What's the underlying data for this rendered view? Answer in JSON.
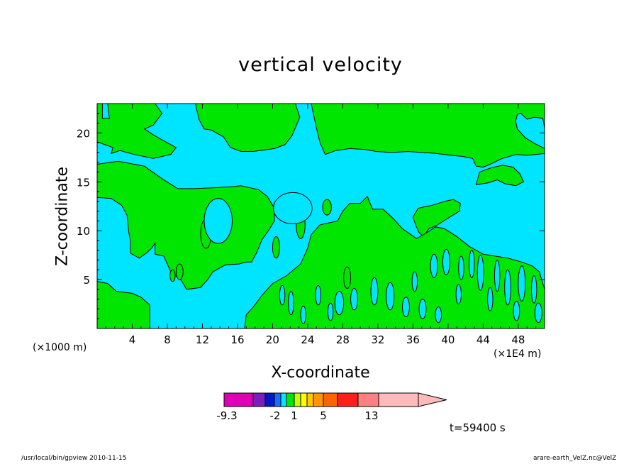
{
  "chart_data": {
    "type": "heatmap",
    "title": "vertical velocity",
    "xlabel": "X-coordinate",
    "ylabel": "Z-coordinate",
    "x_unit_label": "(×1000 m)",
    "x_scale_label": "(×1E4 m)",
    "xlim": [
      0,
      51
    ],
    "ylim": [
      0,
      23
    ],
    "xticks": [
      4,
      8,
      12,
      16,
      20,
      24,
      28,
      32,
      36,
      40,
      44,
      48
    ],
    "yticks": [
      5,
      10,
      15,
      20
    ],
    "colors": {
      "negative": "#00e5ff",
      "positive": "#00e600"
    },
    "colorbar": {
      "colors": [
        "#e000b4",
        "#7a1fbf",
        "#0018c8",
        "#1a6cff",
        "#00e5ff",
        "#00e600",
        "#c8ff00",
        "#ffff00",
        "#ffc800",
        "#ff9600",
        "#ff6400",
        "#ff1e1e",
        "#ff8080",
        "#ffbaba"
      ],
      "tick_labels": [
        "-9.3",
        "-2",
        "1",
        "5",
        "13"
      ]
    },
    "time_label": "t=59400 s",
    "positive_regions": [
      [
        [
          0,
          23
        ],
        [
          0.6,
          23
        ],
        [
          0.6,
          21.5
        ],
        [
          1.4,
          21.5
        ],
        [
          1.2,
          23
        ],
        [
          6.6,
          23
        ],
        [
          7.4,
          22
        ],
        [
          6.4,
          20.8
        ],
        [
          5.4,
          20.4
        ],
        [
          6.4,
          19.8
        ],
        [
          7.6,
          19.2
        ],
        [
          9,
          18.5
        ],
        [
          8.4,
          17.8
        ],
        [
          6.4,
          17.4
        ],
        [
          4.2,
          17.8
        ],
        [
          2.6,
          18.2
        ],
        [
          1.6,
          17.9
        ],
        [
          1.8,
          18.5
        ],
        [
          0,
          19.1
        ]
      ],
      [
        [
          11.2,
          23
        ],
        [
          22.6,
          23
        ],
        [
          23.1,
          21.6
        ],
        [
          22.2,
          19.7
        ],
        [
          21.4,
          18.8
        ],
        [
          20.2,
          18.4
        ],
        [
          17.8,
          18.1
        ],
        [
          16.4,
          18.1
        ],
        [
          15.2,
          18.5
        ],
        [
          14.4,
          19.6
        ],
        [
          13,
          20.3
        ],
        [
          12.2,
          20.4
        ],
        [
          11.6,
          21.4
        ]
      ],
      [
        [
          0,
          16.8
        ],
        [
          2.4,
          17.1
        ],
        [
          5.4,
          16.6
        ],
        [
          6,
          16.2
        ],
        [
          7.6,
          15.2
        ],
        [
          9.2,
          14.3
        ],
        [
          11,
          14.3
        ],
        [
          13.6,
          14.4
        ],
        [
          15.2,
          14.5
        ],
        [
          16.4,
          14.6
        ],
        [
          18.4,
          14.2
        ],
        [
          19.4,
          13.5
        ],
        [
          20.2,
          12.3
        ],
        [
          20.2,
          11
        ],
        [
          19.6,
          10.1
        ],
        [
          18.8,
          9.1
        ],
        [
          18.2,
          7.8
        ],
        [
          17.6,
          6.8
        ],
        [
          17,
          6.8
        ],
        [
          16.2,
          6.6
        ],
        [
          14.6,
          6.5
        ],
        [
          13.2,
          5.8
        ],
        [
          12.6,
          5
        ],
        [
          11.8,
          4.2
        ],
        [
          10.2,
          4
        ],
        [
          9.6,
          4.9
        ],
        [
          8.4,
          5.8
        ],
        [
          7.6,
          7.4
        ],
        [
          6.6,
          7.6
        ],
        [
          6.6,
          8.7
        ],
        [
          6.2,
          8.2
        ],
        [
          5.6,
          7.7
        ],
        [
          4.8,
          7.2
        ],
        [
          3.8,
          7.7
        ],
        [
          3.8,
          8.9
        ],
        [
          3.6,
          9.9
        ],
        [
          3.4,
          11.6
        ],
        [
          2.8,
          12.6
        ],
        [
          1.6,
          13.3
        ],
        [
          0,
          13.4
        ]
      ],
      [
        [
          24.4,
          23
        ],
        [
          51,
          23
        ],
        [
          51,
          20.5
        ],
        [
          50.8,
          21.5
        ],
        [
          49.8,
          21.6
        ],
        [
          49,
          21.4
        ],
        [
          48.3,
          22
        ],
        [
          47.9,
          21.9
        ],
        [
          47.7,
          21.2
        ],
        [
          47.9,
          20.4
        ],
        [
          48.8,
          19.5
        ],
        [
          49.9,
          18.9
        ],
        [
          51,
          18.4
        ],
        [
          51,
          17.9
        ],
        [
          49,
          17.7
        ],
        [
          47.8,
          17.8
        ],
        [
          46.2,
          17.4
        ],
        [
          44.8,
          16.8
        ],
        [
          44,
          16.5
        ],
        [
          43.2,
          16.6
        ],
        [
          42.8,
          17.4
        ],
        [
          41.6,
          17.6
        ],
        [
          40.4,
          17.7
        ],
        [
          38.6,
          17.9
        ],
        [
          37,
          18
        ],
        [
          35.4,
          18.1
        ],
        [
          33.6,
          18
        ],
        [
          31.8,
          18.1
        ],
        [
          30.6,
          18.3
        ],
        [
          28.8,
          18.4
        ],
        [
          27.2,
          18.2
        ],
        [
          26,
          17.8
        ],
        [
          25.4,
          19
        ],
        [
          25,
          20.5
        ]
      ],
      [
        [
          43.2,
          14.7
        ],
        [
          43.6,
          16
        ],
        [
          44.8,
          16.4
        ],
        [
          46.2,
          16.7
        ],
        [
          47.4,
          16.5
        ],
        [
          48.2,
          15.8
        ],
        [
          48.6,
          15
        ],
        [
          47.7,
          14.6
        ],
        [
          46.5,
          14.8
        ],
        [
          45.6,
          15.2
        ],
        [
          44.6,
          14.9
        ]
      ],
      [
        [
          36,
          11.4
        ],
        [
          36.6,
          12.3
        ],
        [
          38.2,
          12.6
        ],
        [
          39.6,
          13
        ],
        [
          40.6,
          13.2
        ],
        [
          41.4,
          12.8
        ],
        [
          41.3,
          12
        ],
        [
          40.2,
          11.4
        ],
        [
          38.8,
          10.6
        ],
        [
          37.8,
          10.2
        ],
        [
          37.2,
          9.4
        ],
        [
          36.7,
          9.8
        ],
        [
          36.3,
          10.6
        ]
      ],
      [
        [
          0,
          4.8
        ],
        [
          1.2,
          4.6
        ],
        [
          2.2,
          3.8
        ],
        [
          4,
          3.6
        ],
        [
          5,
          3.2
        ],
        [
          6,
          2.4
        ],
        [
          6,
          0
        ],
        [
          0,
          0
        ]
      ],
      [
        [
          16.8,
          0
        ],
        [
          51,
          0
        ],
        [
          51,
          4
        ],
        [
          50.4,
          5.8
        ],
        [
          49.6,
          6.4
        ],
        [
          48.4,
          6.8
        ],
        [
          46.8,
          7.2
        ],
        [
          45.4,
          7.4
        ],
        [
          44,
          7.6
        ],
        [
          42.4,
          8.4
        ],
        [
          41,
          9.4
        ],
        [
          39.6,
          10.2
        ],
        [
          38.6,
          10.4
        ],
        [
          37.2,
          9.6
        ],
        [
          36.4,
          9.2
        ],
        [
          34.8,
          10.2
        ],
        [
          33.8,
          11.2
        ],
        [
          32.6,
          12.2
        ],
        [
          31.4,
          12.2
        ],
        [
          30.8,
          13.5
        ],
        [
          30,
          12.8
        ],
        [
          28.8,
          12.8
        ],
        [
          28,
          12
        ],
        [
          27.4,
          11
        ],
        [
          25.4,
          10.6
        ],
        [
          24.4,
          9.6
        ],
        [
          24,
          8.2
        ],
        [
          23.2,
          6.6
        ],
        [
          21.6,
          5.4
        ],
        [
          20,
          4.6
        ],
        [
          18.8,
          3.4
        ],
        [
          17.8,
          2.2
        ],
        [
          17,
          1.4
        ]
      ]
    ],
    "positive_blobs": [
      [
        12.4,
        9.7,
        0.6,
        1.5
      ],
      [
        20.4,
        8.3,
        0.4,
        1.1
      ],
      [
        23.2,
        10.6,
        0.5,
        1.4
      ],
      [
        26.2,
        12.4,
        0.5,
        0.8
      ],
      [
        28.5,
        5.2,
        0.4,
        1.1
      ],
      [
        9.4,
        5.8,
        0.4,
        0.8
      ],
      [
        8.6,
        5.4,
        0.3,
        0.6
      ]
    ],
    "negative_blobs": [
      [
        22.3,
        12.3,
        2.2,
        1.6
      ],
      [
        13.8,
        11,
        1.6,
        2.3
      ],
      [
        27.6,
        2.6,
        0.5,
        1.2
      ],
      [
        29.3,
        3,
        0.4,
        1.1
      ],
      [
        31.6,
        3.8,
        0.4,
        1.4
      ],
      [
        33.4,
        3.3,
        0.45,
        1.4
      ],
      [
        35.2,
        2.2,
        0.4,
        1
      ],
      [
        37.1,
        2,
        0.4,
        1
      ],
      [
        36.2,
        4.8,
        0.3,
        1
      ],
      [
        38.4,
        6.4,
        0.4,
        1.2
      ],
      [
        39.8,
        6.8,
        0.4,
        1.3
      ],
      [
        41.5,
        6.2,
        0.3,
        1.2
      ],
      [
        42.7,
        6.6,
        0.3,
        1.4
      ],
      [
        43.7,
        5.7,
        0.35,
        1.8
      ],
      [
        45.6,
        5.4,
        0.3,
        1.6
      ],
      [
        46.8,
        4.2,
        0.35,
        1.8
      ],
      [
        48.4,
        4.6,
        0.4,
        1.8
      ],
      [
        49.8,
        4,
        0.3,
        1.4
      ],
      [
        41.2,
        3.5,
        0.3,
        1
      ],
      [
        44.8,
        3,
        0.3,
        1.2
      ],
      [
        47.8,
        1.8,
        0.35,
        1
      ],
      [
        50.3,
        1.6,
        0.4,
        1
      ],
      [
        22.1,
        2.6,
        0.3,
        1.2
      ],
      [
        23.5,
        1.4,
        0.3,
        0.9
      ],
      [
        25.2,
        3.4,
        0.3,
        1
      ],
      [
        26.6,
        1.7,
        0.3,
        0.9
      ],
      [
        21.1,
        3.4,
        0.3,
        1
      ],
      [
        38.9,
        1.4,
        0.35,
        0.8
      ]
    ]
  },
  "footer": {
    "left": "/usr/local/bin/gpview   2010-11-15",
    "right": "arare-earth_VelZ.nc@VelZ"
  }
}
